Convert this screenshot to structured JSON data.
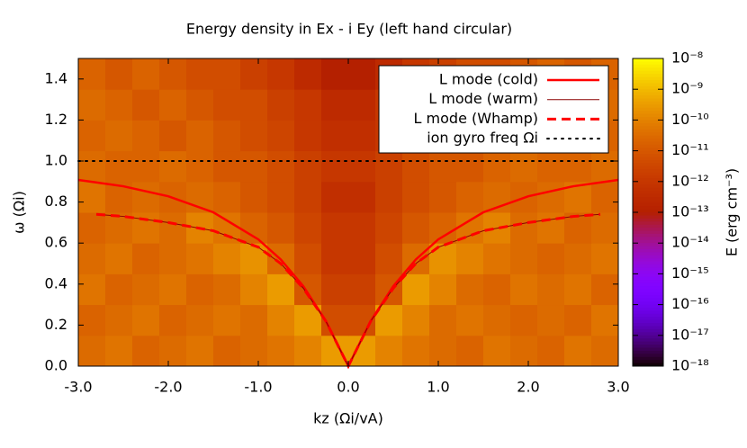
{
  "chart_data": {
    "type": "heatmap",
    "title": "Energy density in Ex - i Ey (left hand circular)",
    "xlabel": "kz (Ωi/vA)",
    "ylabel": "ω (Ωi)",
    "colorbar_label": "E (erg cm⁻³)",
    "xlim": [
      -3,
      3
    ],
    "ylim": [
      0,
      1.5
    ],
    "xticks": [
      {
        "value": -3,
        "label": "-3.0"
      },
      {
        "value": -2,
        "label": "-2.0"
      },
      {
        "value": -1,
        "label": "-1.0"
      },
      {
        "value": 0,
        "label": "0.0"
      },
      {
        "value": 1,
        "label": "1.0"
      },
      {
        "value": 2,
        "label": "2.0"
      },
      {
        "value": 3,
        "label": "3.0"
      }
    ],
    "yticks": [
      {
        "value": 0,
        "label": "0.0"
      },
      {
        "value": 0.2,
        "label": "0.2"
      },
      {
        "value": 0.4,
        "label": "0.4"
      },
      {
        "value": 0.6,
        "label": "0.6"
      },
      {
        "value": 0.8,
        "label": "0.8"
      },
      {
        "value": 1,
        "label": "1.0"
      },
      {
        "value": 1.2,
        "label": "1.2"
      },
      {
        "value": 1.4,
        "label": "1.4"
      }
    ],
    "clim": [
      1e-18,
      1e-08
    ],
    "color_log_scale": true,
    "cticks": [
      {
        "value": 1e-08,
        "label": "10⁻⁸"
      },
      {
        "value": 1e-09,
        "label": "10⁻⁹"
      },
      {
        "value": 1e-10,
        "label": "10⁻¹⁰"
      },
      {
        "value": 1e-11,
        "label": "10⁻¹¹"
      },
      {
        "value": 1e-12,
        "label": "10⁻¹²"
      },
      {
        "value": 1e-13,
        "label": "10⁻¹³"
      },
      {
        "value": 1e-14,
        "label": "10⁻¹⁴"
      },
      {
        "value": 1e-15,
        "label": "10⁻¹⁵"
      },
      {
        "value": 1e-16,
        "label": "10⁻¹⁶"
      },
      {
        "value": 1e-17,
        "label": "10⁻¹⁷"
      },
      {
        "value": 1e-18,
        "label": "10⁻¹⁸"
      }
    ],
    "legend_location": "top right",
    "heatmap": {
      "x_edges": [
        -3,
        -2.7,
        -2.4,
        -2.1,
        -1.8,
        -1.5,
        -1.2,
        -0.9,
        -0.6,
        -0.3,
        0,
        0.3,
        0.6,
        0.9,
        1.2,
        1.5,
        1.8,
        2.1,
        2.4,
        2.7,
        3
      ],
      "y_edges": [
        0,
        0.15,
        0.3,
        0.45,
        0.6,
        0.75,
        0.9,
        1.05,
        1.2,
        1.35,
        1.5
      ],
      "values": [
        [
          3e-11,
          5e-11,
          2e-11,
          3e-11,
          5e-11,
          2e-11,
          3e-11,
          5e-11,
          1e-10,
          3e-10,
          3e-10,
          1e-10,
          5e-11,
          3e-11,
          2e-11,
          5e-11,
          3e-11,
          2e-11,
          5e-11,
          3e-11
        ],
        [
          2e-11,
          3e-11,
          5e-11,
          2e-11,
          3e-11,
          5e-11,
          3e-11,
          1e-10,
          3e-10,
          5e-12,
          5e-12,
          3e-10,
          1e-10,
          3e-11,
          5e-11,
          3e-11,
          2e-11,
          3e-11,
          2e-11,
          5e-11
        ],
        [
          5e-11,
          2e-11,
          3e-11,
          5e-11,
          2e-11,
          3e-11,
          1e-10,
          3e-10,
          1e-11,
          2e-12,
          2e-12,
          1e-11,
          3e-10,
          1e-10,
          3e-11,
          2e-11,
          5e-11,
          3e-11,
          5e-11,
          2e-11
        ],
        [
          3e-11,
          5e-11,
          2e-11,
          3e-11,
          5e-11,
          1e-10,
          2e-10,
          3e-11,
          5e-12,
          1e-12,
          1e-12,
          5e-12,
          3e-11,
          2e-10,
          1e-10,
          5e-11,
          3e-11,
          2e-11,
          3e-11,
          5e-11
        ],
        [
          2e-11,
          3e-11,
          5e-11,
          3e-11,
          1e-10,
          5e-11,
          2e-11,
          1e-11,
          3e-12,
          1e-12,
          1e-12,
          3e-12,
          1e-11,
          2e-11,
          5e-11,
          1e-10,
          3e-11,
          5e-11,
          2e-11,
          3e-11
        ],
        [
          5e-11,
          2e-11,
          3e-11,
          2e-11,
          3e-11,
          2e-11,
          1e-11,
          5e-12,
          2e-12,
          5e-13,
          5e-13,
          2e-12,
          5e-12,
          1e-11,
          2e-11,
          3e-11,
          2e-11,
          3e-11,
          5e-11,
          2e-11
        ],
        [
          3e-11,
          2e-11,
          2e-11,
          3e-11,
          2e-11,
          1e-11,
          1e-11,
          5e-12,
          2e-12,
          1e-12,
          1e-12,
          2e-12,
          5e-12,
          1e-11,
          1e-11,
          2e-11,
          3e-11,
          2e-11,
          2e-11,
          3e-11
        ],
        [
          2e-11,
          3e-11,
          2e-11,
          1e-11,
          2e-11,
          1e-11,
          5e-12,
          3e-12,
          1e-12,
          5e-13,
          5e-13,
          1e-12,
          3e-12,
          5e-12,
          1e-11,
          2e-11,
          1e-11,
          2e-11,
          3e-11,
          2e-11
        ],
        [
          3e-11,
          2e-11,
          1e-11,
          2e-11,
          1e-11,
          5e-12,
          5e-12,
          2e-12,
          1e-12,
          3e-13,
          3e-13,
          1e-12,
          2e-12,
          5e-12,
          5e-12,
          1e-11,
          2e-11,
          1e-11,
          2e-11,
          3e-11
        ],
        [
          2e-11,
          1e-11,
          2e-11,
          1e-11,
          5e-12,
          5e-12,
          2e-12,
          1e-12,
          3e-13,
          1e-13,
          1e-13,
          3e-13,
          1e-12,
          2e-12,
          5e-12,
          5e-12,
          1e-11,
          2e-11,
          1e-11,
          2e-11
        ]
      ]
    },
    "series": [
      {
        "name": "L mode (cold)",
        "color": "#ff0000",
        "style": "solid",
        "width": 2.5,
        "x": [
          -3,
          -2.5,
          -2,
          -1.5,
          -1,
          -0.75,
          -0.5,
          -0.25,
          0,
          0.25,
          0.5,
          0.75,
          1,
          1.5,
          2,
          2.5,
          3
        ],
        "values": [
          0.908,
          0.877,
          0.828,
          0.75,
          0.618,
          0.52,
          0.39,
          0.221,
          0,
          0.221,
          0.39,
          0.52,
          0.618,
          0.75,
          0.828,
          0.877,
          0.908
        ]
      },
      {
        "name": "L mode (warm)",
        "color": "#8b0000",
        "style": "solid",
        "width": 1,
        "x": [
          -2.8,
          -2.5,
          -2,
          -1.5,
          -1,
          -0.75,
          -0.5,
          -0.25,
          0,
          0.25,
          0.5,
          0.75,
          1,
          1.5,
          2,
          2.5,
          2.8
        ],
        "values": [
          0.74,
          0.73,
          0.7,
          0.66,
          0.58,
          0.5,
          0.38,
          0.22,
          0,
          0.22,
          0.38,
          0.5,
          0.58,
          0.66,
          0.7,
          0.73,
          0.74
        ]
      },
      {
        "name": "L mode (Whamp)",
        "color": "#ff0000",
        "style": "dashed",
        "width": 3,
        "x": [
          -2.8,
          -2.5,
          -2,
          -1.5,
          -1,
          -0.75,
          -0.5,
          -0.25,
          0,
          0.25,
          0.5,
          0.75,
          1,
          1.5,
          2,
          2.5,
          2.8
        ],
        "values": [
          0.74,
          0.73,
          0.7,
          0.66,
          0.58,
          0.5,
          0.38,
          0.22,
          0,
          0.22,
          0.38,
          0.5,
          0.58,
          0.66,
          0.7,
          0.73,
          0.74
        ]
      },
      {
        "name": "ion gyro freq Ωi",
        "color": "#000000",
        "style": "dotted",
        "width": 2,
        "x": [
          -3,
          3
        ],
        "values": [
          1,
          1
        ]
      }
    ]
  }
}
